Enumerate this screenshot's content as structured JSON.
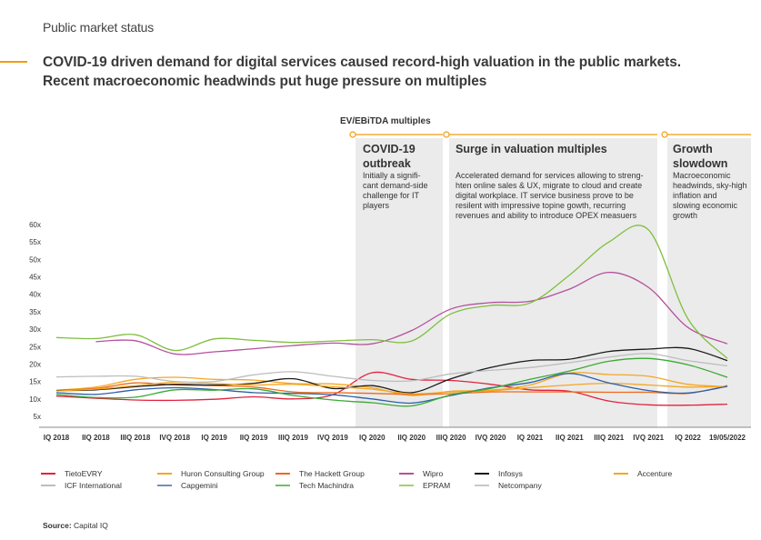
{
  "header": {
    "section_label": "Public market status",
    "headline_line1": "COVID-19  driven demand for digital services caused record-high valuation in the public markets.",
    "headline_line2": "Recent macroeconomic headwinds put huge pressure on multiples",
    "accent_color": "#f39c12"
  },
  "chart_title": "EV/EBiTDA multiples",
  "phases": [
    {
      "title_line1": "COVID-19",
      "title_line2": "outbreak",
      "desc": [
        "Initially a signifi-",
        "cant demand-side",
        "challenge for IT",
        "players"
      ],
      "start_category": "IQ 2020",
      "end_category": "IIQ 2020"
    },
    {
      "title_line1": "Surge in valuation multiples",
      "title_line2": "",
      "desc": [
        "Accelerated demand for services allowing to streng-",
        "hten online sales & UX, migrate to cloud and create",
        "digital workplace. IT service business prove to be",
        "resilent with impressive topine gowth, recurring",
        "revenues and ability to introduce OPEX measuers"
      ],
      "start_category": "IIIQ 2020",
      "end_category": "IVQ 2021"
    },
    {
      "title_line1": "Growth",
      "title_line2": "slowdown",
      "desc": [
        "Macroeconomic",
        "headwinds, sky-high",
        "inflation and",
        "slowing economic",
        "growth"
      ],
      "start_category": "IQ 2022",
      "end_category": "19/05/2022"
    }
  ],
  "source": {
    "label": "Source:",
    "value": "Capital IQ"
  },
  "chart_data": {
    "type": "line",
    "title": "EV/EBiTDA multiples",
    "xlabel": "",
    "ylabel": "",
    "ylim": [
      5,
      60
    ],
    "yticks": [
      "5x",
      "10x",
      "15x",
      "20x",
      "25x",
      "30x",
      "35x",
      "40x",
      "45x",
      "50x",
      "55x",
      "60x"
    ],
    "ytick_values": [
      5,
      10,
      15,
      20,
      25,
      30,
      35,
      40,
      45,
      50,
      55,
      60
    ],
    "categories": [
      "IQ 2018",
      "IIQ 2018",
      "IIIQ 2018",
      "IVQ 2018",
      "IQ 2019",
      "IIQ 2019",
      "IIIQ 2019",
      "IVQ 2019",
      "IQ 2020",
      "IIQ 2020",
      "IIIQ 2020",
      "IVQ 2020",
      "IQ 2021",
      "IIQ 2021",
      "IIIQ 2021",
      "IVQ 2021",
      "IQ 2022",
      "19/05/2022"
    ],
    "grid": false,
    "legend_position": "bottom",
    "series": [
      {
        "name": "TietoEVRY",
        "color": "#e2233e",
        "values": [
          10.8,
          10.2,
          9.7,
          9.6,
          9.9,
          10.6,
          10.0,
          11.2,
          17.5,
          15.6,
          15.3,
          14.2,
          12.6,
          12.2,
          9.4,
          8.3,
          8.2,
          8.5
        ]
      },
      {
        "name": "Huron Consulting Group",
        "color": "#f5a623",
        "values": [
          12.5,
          13.4,
          15.6,
          16.2,
          15.6,
          15.4,
          14.4,
          14.3,
          13.2,
          11.0,
          12.2,
          12.5,
          14.0,
          17.4,
          17.0,
          16.5,
          14.2,
          13.5
        ]
      },
      {
        "name": "The Hackett Group",
        "color": "#ee6a1c",
        "values": [
          12.4,
          13.0,
          14.6,
          14.0,
          13.8,
          13.4,
          12.0,
          11.8,
          11.6,
          11.3,
          11.5,
          12.0,
          12.0,
          12.0,
          11.9,
          11.9,
          11.6,
          13.8
        ]
      },
      {
        "name": "Wipro",
        "color": "#b5519e",
        "values": [
          null,
          26.4,
          26.7,
          22.9,
          23.5,
          24.4,
          25.3,
          26.0,
          25.8,
          29.6,
          35.8,
          37.6,
          38.0,
          41.5,
          46.3,
          42.0,
          30.5,
          25.8
        ]
      },
      {
        "name": "Infosys",
        "color": "#1a1a1a",
        "values": [
          12.4,
          12.6,
          13.5,
          14.2,
          14.0,
          14.5,
          15.8,
          13.0,
          13.8,
          11.8,
          15.8,
          19.0,
          21.0,
          21.4,
          23.6,
          24.3,
          24.5,
          21.0
        ]
      },
      {
        "name": "Accenture",
        "color": "#f5a623",
        "values": [
          12.3,
          12.8,
          13.8,
          14.8,
          14.4,
          14.0,
          14.2,
          13.5,
          12.8,
          11.5,
          12.0,
          12.3,
          13.2,
          14.0,
          14.5,
          14.0,
          13.4,
          13.6
        ]
      },
      {
        "name": "ICF International",
        "color": "#bdbdbd",
        "values": [
          16.3,
          16.5,
          16.5,
          15.0,
          15.0,
          16.9,
          17.8,
          16.5,
          15.3,
          15.2,
          17.2,
          18.2,
          19.0,
          20.4,
          22.0,
          23.0,
          21.0,
          19.5
        ]
      },
      {
        "name": "Capgemini",
        "color": "#2e5fa8",
        "values": [
          11.8,
          11.3,
          12.6,
          13.2,
          12.7,
          11.8,
          11.6,
          11.2,
          10.0,
          8.8,
          11.0,
          13.2,
          14.7,
          17.3,
          14.6,
          12.4,
          11.7,
          13.6
        ]
      },
      {
        "name": "Tech Machindra",
        "color": "#3aaa35",
        "values": [
          11.3,
          10.4,
          10.5,
          12.6,
          12.5,
          12.9,
          11.0,
          9.7,
          8.9,
          8.0,
          11.2,
          13.0,
          15.6,
          18.0,
          20.8,
          21.6,
          19.8,
          16.2
        ]
      },
      {
        "name": "EPRAM",
        "color": "#7fbf3f",
        "values": [
          27.6,
          27.3,
          28.4,
          23.9,
          27.2,
          26.8,
          26.2,
          26.6,
          27.0,
          26.6,
          34.4,
          36.8,
          37.5,
          45.5,
          55.0,
          58.5,
          33.0,
          21.6
        ]
      },
      {
        "name": "Netcompany",
        "color": "#c8c8c8",
        "values": [
          null,
          null,
          null,
          null,
          null,
          null,
          null,
          null,
          null,
          null,
          null,
          null,
          null,
          null,
          null,
          null,
          null,
          null
        ]
      }
    ]
  },
  "legend": [
    {
      "name": "TietoEVRY",
      "color": "#e2233e"
    },
    {
      "name": "Huron Consulting Group",
      "color": "#f5a623"
    },
    {
      "name": "The Hackett Group",
      "color": "#ee6a1c"
    },
    {
      "name": "Wipro",
      "color": "#b5519e"
    },
    {
      "name": "Infosys",
      "color": "#1a1a1a"
    },
    {
      "name": "Accenture",
      "color": "#f5a623"
    },
    {
      "name": "ICF International",
      "color": "#bdbdbd"
    },
    {
      "name": "Capgemini",
      "color": "#6f8fc4"
    },
    {
      "name": "Tech Machindra",
      "color": "#6cc063"
    },
    {
      "name": "EPRAM",
      "color": "#a3d16d"
    },
    {
      "name": "Netcompany",
      "color": "#c8c8c8"
    }
  ]
}
